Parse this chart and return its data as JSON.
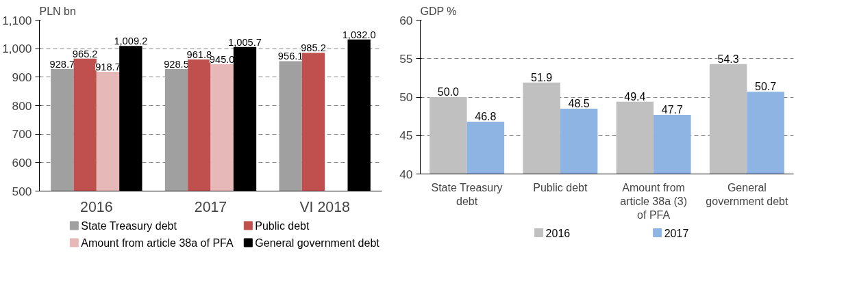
{
  "chart_data": [
    {
      "type": "bar",
      "ylabel": "PLN bn",
      "categories": [
        "2016",
        "2017",
        "VI 2018"
      ],
      "ylim": [
        500,
        1100
      ],
      "yticks": [
        500,
        600,
        700,
        800,
        900,
        {
          "value": 1000,
          "label": "1,000"
        },
        {
          "value": 1100,
          "label": "1,100"
        }
      ],
      "grid": "y",
      "legend": "bottom",
      "series": [
        {
          "name": "State Treasury debt",
          "color": "#a0a0a0",
          "values": [
            928.7,
            928.5,
            956.1
          ],
          "value_labels": [
            "928.7",
            "928.5",
            "956.1"
          ]
        },
        {
          "name": "Public debt",
          "color": "#c0504d",
          "values": [
            965.2,
            961.8,
            985.2
          ],
          "value_labels": [
            "965.2",
            "961.8",
            "985.2"
          ]
        },
        {
          "name": "Amount from article 38a of PFA",
          "color": "#e6b9b8",
          "values": [
            918.7,
            945.0,
            null
          ],
          "value_labels": [
            "918.7",
            "945.0",
            null
          ]
        },
        {
          "name": "General government debt",
          "color": "#000000",
          "values": [
            1009.2,
            1005.7,
            1032.0
          ],
          "value_labels": [
            "1,009.2",
            "1,005.7",
            "1,032.0"
          ]
        }
      ]
    },
    {
      "type": "bar",
      "ylabel": "GDP %",
      "categories": [
        "State Treasury debt",
        "Public debt",
        "Amount from article 38a (3) of PFA",
        "General government debt"
      ],
      "ylim": [
        40,
        60
      ],
      "yticks": [
        40,
        45,
        50,
        55,
        60
      ],
      "grid": "y",
      "legend": "bottom",
      "series": [
        {
          "name": "2016",
          "color": "#c0c0c0",
          "values": [
            50.0,
            51.9,
            49.4,
            54.3
          ],
          "value_labels": [
            "50.0",
            "51.9",
            "49.4",
            "54.3"
          ]
        },
        {
          "name": "2017",
          "color": "#8db4e2",
          "values": [
            46.8,
            48.5,
            47.7,
            50.7
          ],
          "value_labels": [
            "46.8",
            "48.5",
            "47.7",
            "50.7"
          ]
        }
      ]
    }
  ]
}
